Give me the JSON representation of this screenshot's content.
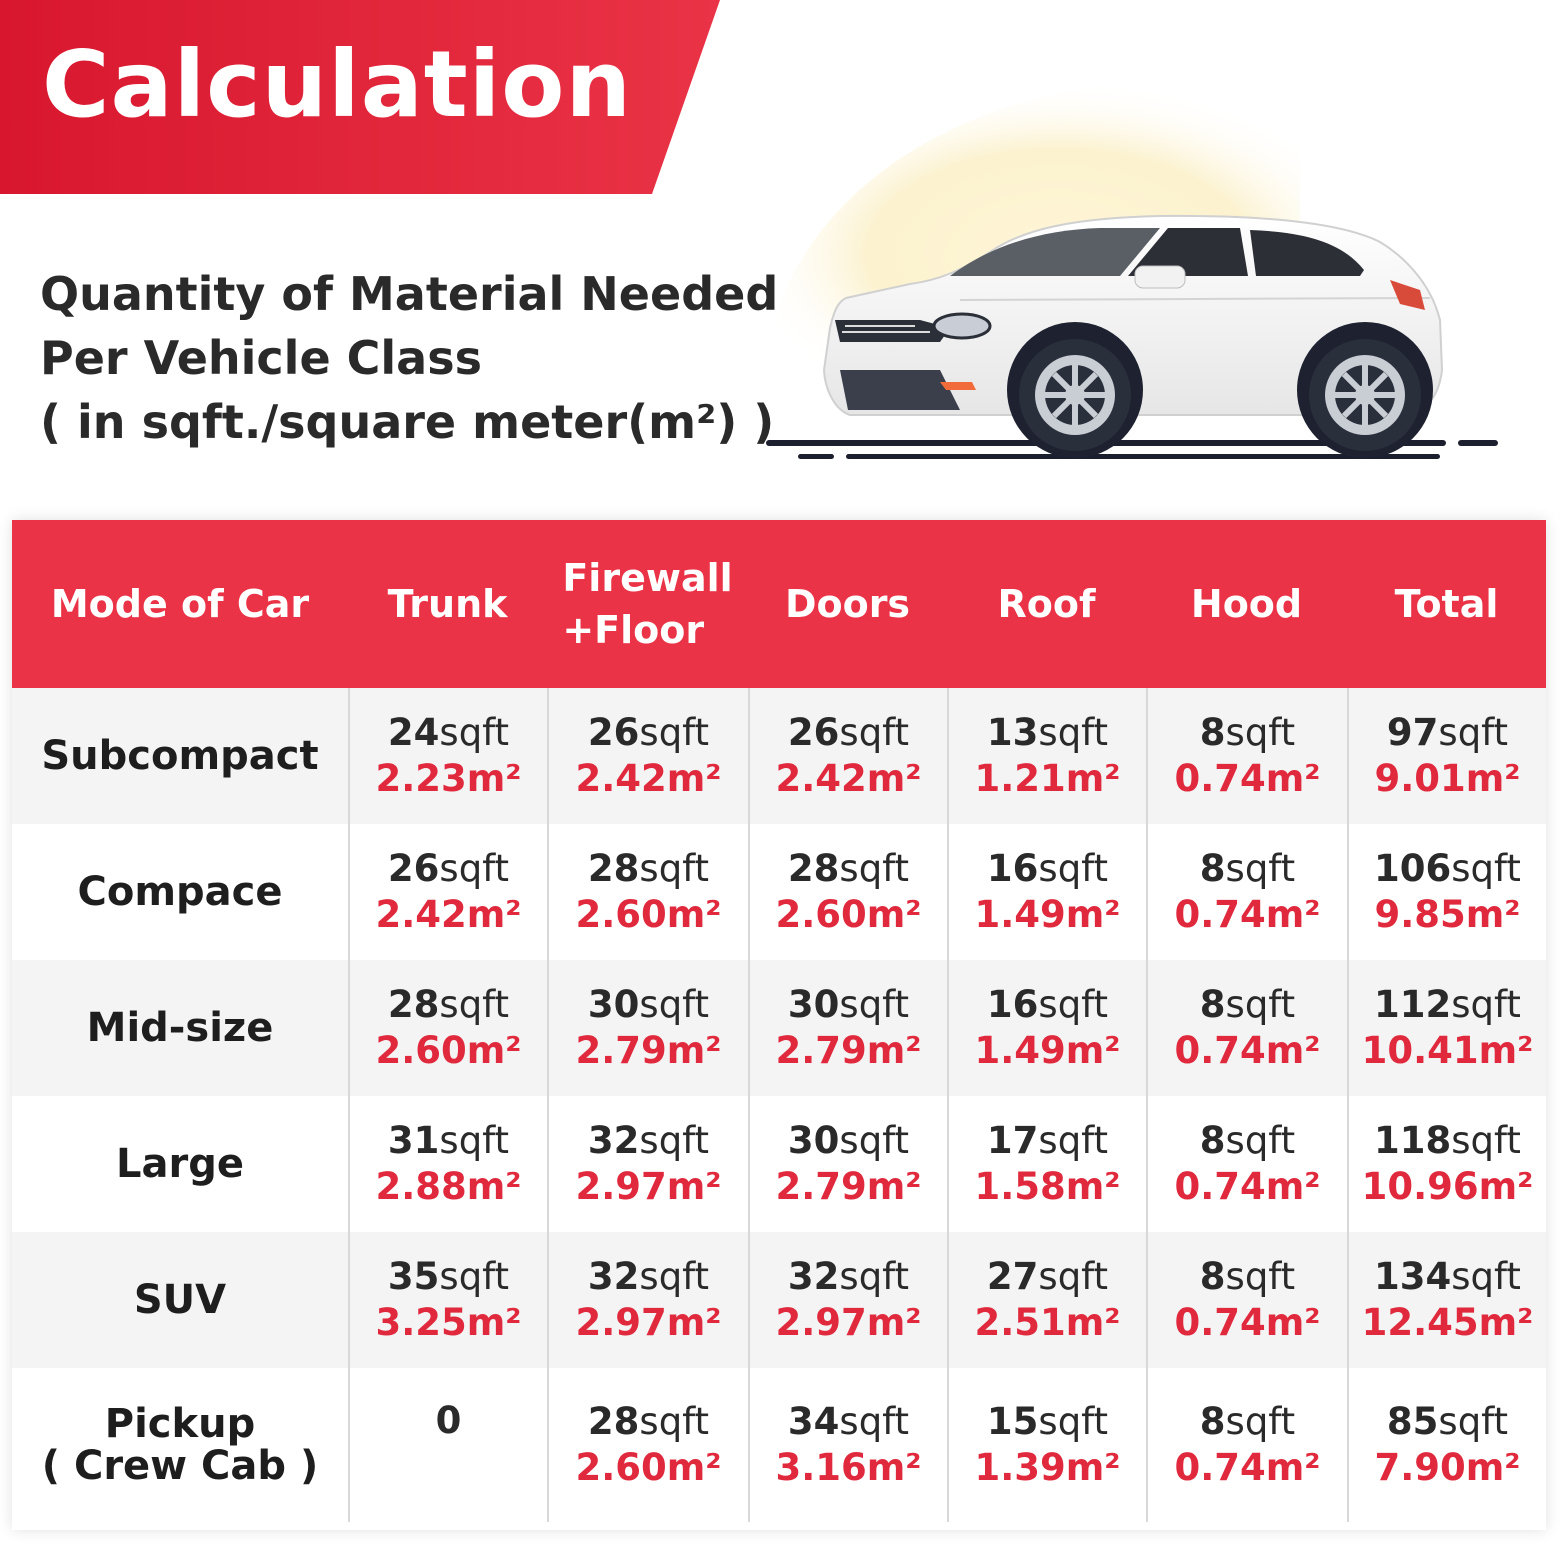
{
  "banner": {
    "title": "Calculation"
  },
  "subtitle": {
    "line1": "Quantity of Material Needed",
    "line2": "Per Vehicle Class",
    "line3": "( in sqft./square meter(m²) )"
  },
  "table": {
    "headers": {
      "mode": "Mode of Car",
      "trunk": "Trunk",
      "firewall_line1": "Firewall",
      "firewall_line2": "+Floor",
      "doors": "Doors",
      "roof": "Roof",
      "hood": "Hood",
      "total": "Total"
    },
    "rows": [
      {
        "label_line1": "Subcompact",
        "label_line2": "",
        "cells": [
          {
            "num": "24",
            "unit": "sqft",
            "sqm": "2.23m²"
          },
          {
            "num": "26",
            "unit": "sqft",
            "sqm": "2.42m²"
          },
          {
            "num": "26",
            "unit": "sqft",
            "sqm": "2.42m²"
          },
          {
            "num": "13",
            "unit": "sqft",
            "sqm": "1.21m²"
          },
          {
            "num": "8",
            "unit": "sqft",
            "sqm": "0.74m²"
          },
          {
            "num": "97",
            "unit": "sqft",
            "sqm": "9.01m²"
          }
        ]
      },
      {
        "label_line1": "Compace",
        "label_line2": "",
        "cells": [
          {
            "num": "26",
            "unit": "sqft",
            "sqm": "2.42m²"
          },
          {
            "num": "28",
            "unit": "sqft",
            "sqm": "2.60m²"
          },
          {
            "num": "28",
            "unit": "sqft",
            "sqm": "2.60m²"
          },
          {
            "num": "16",
            "unit": "sqft",
            "sqm": "1.49m²"
          },
          {
            "num": "8",
            "unit": "sqft",
            "sqm": "0.74m²"
          },
          {
            "num": "106",
            "unit": "sqft",
            "sqm": "9.85m²"
          }
        ]
      },
      {
        "label_line1": "Mid-size",
        "label_line2": "",
        "cells": [
          {
            "num": "28",
            "unit": "sqft",
            "sqm": "2.60m²"
          },
          {
            "num": "30",
            "unit": "sqft",
            "sqm": "2.79m²"
          },
          {
            "num": "30",
            "unit": "sqft",
            "sqm": "2.79m²"
          },
          {
            "num": "16",
            "unit": "sqft",
            "sqm": "1.49m²"
          },
          {
            "num": "8",
            "unit": "sqft",
            "sqm": "0.74m²"
          },
          {
            "num": "112",
            "unit": "sqft",
            "sqm": "10.41m²"
          }
        ]
      },
      {
        "label_line1": "Large",
        "label_line2": "",
        "cells": [
          {
            "num": "31",
            "unit": "sqft",
            "sqm": "2.88m²"
          },
          {
            "num": "32",
            "unit": "sqft",
            "sqm": "2.97m²"
          },
          {
            "num": "30",
            "unit": "sqft",
            "sqm": "2.79m²"
          },
          {
            "num": "17",
            "unit": "sqft",
            "sqm": "1.58m²"
          },
          {
            "num": "8",
            "unit": "sqft",
            "sqm": "0.74m²"
          },
          {
            "num": "118",
            "unit": "sqft",
            "sqm": "10.96m²"
          }
        ]
      },
      {
        "label_line1": "SUV",
        "label_line2": "",
        "cells": [
          {
            "num": "35",
            "unit": "sqft",
            "sqm": "3.25m²"
          },
          {
            "num": "32",
            "unit": "sqft",
            "sqm": "2.97m²"
          },
          {
            "num": "32",
            "unit": "sqft",
            "sqm": "2.97m²"
          },
          {
            "num": "27",
            "unit": "sqft",
            "sqm": "2.51m²"
          },
          {
            "num": "8",
            "unit": "sqft",
            "sqm": "0.74m²"
          },
          {
            "num": "134",
            "unit": "sqft",
            "sqm": "12.45m²"
          }
        ]
      },
      {
        "label_line1": "Pickup",
        "label_line2": "( Crew Cab )",
        "cells": [
          {
            "num": "0",
            "unit": "",
            "sqm": ""
          },
          {
            "num": "28",
            "unit": "sqft",
            "sqm": "2.60m²"
          },
          {
            "num": "34",
            "unit": "sqft",
            "sqm": "3.16m²"
          },
          {
            "num": "15",
            "unit": "sqft",
            "sqm": "1.39m²"
          },
          {
            "num": "8",
            "unit": "sqft",
            "sqm": "0.74m²"
          },
          {
            "num": "85",
            "unit": "sqft",
            "sqm": "7.90m²"
          }
        ]
      }
    ]
  },
  "colors": {
    "accent": "#ea3346",
    "value_red": "#e0293d"
  },
  "illustration": {
    "icon": "white-suv-car-icon"
  }
}
